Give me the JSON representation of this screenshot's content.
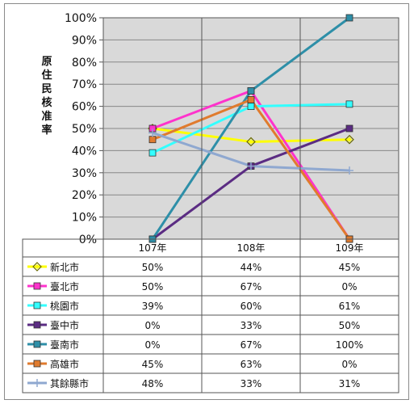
{
  "chart_data": {
    "type": "line",
    "ylabel": "原住民核准率",
    "categories": [
      "107年",
      "108年",
      "109年"
    ],
    "ylim": [
      0,
      100
    ],
    "yticks": [
      "0%",
      "10%",
      "20%",
      "30%",
      "40%",
      "50%",
      "60%",
      "70%",
      "80%",
      "90%",
      "100%"
    ],
    "grid": true,
    "legend": "data-table-below",
    "series": [
      {
        "name": "新北市",
        "values": [
          50,
          44,
          45
        ],
        "labels": [
          "50%",
          "44%",
          "45%"
        ],
        "color": "#ffff00",
        "marker": "diamond"
      },
      {
        "name": "臺北市",
        "values": [
          50,
          67,
          0
        ],
        "labels": [
          "50%",
          "67%",
          "0%"
        ],
        "color": "#ff33cc",
        "marker": "square"
      },
      {
        "name": "桃園市",
        "values": [
          39,
          60,
          61
        ],
        "labels": [
          "39%",
          "60%",
          "61%"
        ],
        "color": "#33ffff",
        "marker": "square"
      },
      {
        "name": "臺中市",
        "values": [
          0,
          33,
          50
        ],
        "labels": [
          "0%",
          "33%",
          "50%"
        ],
        "color": "#5b2c83",
        "marker": "square"
      },
      {
        "name": "臺南市",
        "values": [
          0,
          67,
          100
        ],
        "labels": [
          "0%",
          "67%",
          "100%"
        ],
        "color": "#2e8fa8",
        "marker": "square"
      },
      {
        "name": "高雄市",
        "values": [
          45,
          63,
          0
        ],
        "labels": [
          "45%",
          "63%",
          "0%"
        ],
        "color": "#e07b2e",
        "marker": "square"
      },
      {
        "name": "其餘縣市",
        "values": [
          48,
          33,
          31
        ],
        "labels": [
          "48%",
          "33%",
          "31%"
        ],
        "color": "#8fa8d0",
        "marker": "plus"
      }
    ]
  }
}
